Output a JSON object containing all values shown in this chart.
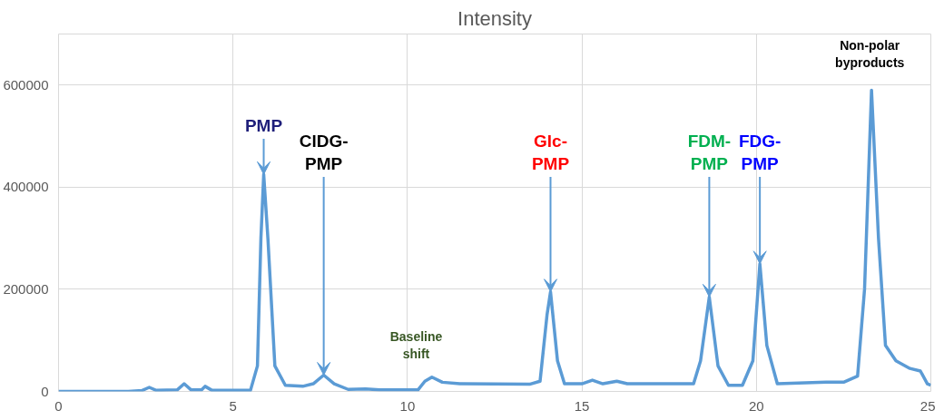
{
  "chart_data": {
    "type": "line",
    "title": "Intensity",
    "x": [
      0,
      2,
      2.4,
      2.6,
      2.8,
      3.4,
      3.6,
      3.8,
      4.1,
      4.2,
      4.4,
      5.5,
      5.7,
      5.8,
      5.88,
      6.0,
      6.2,
      6.5,
      7.0,
      7.3,
      7.6,
      7.9,
      8.3,
      8.8,
      9.2,
      10.3,
      10.5,
      10.7,
      11,
      11.5,
      13.5,
      13.8,
      14.0,
      14.1,
      14.3,
      14.5,
      15,
      15.3,
      15.6,
      16,
      16.3,
      18.2,
      18.4,
      18.65,
      18.9,
      19.2,
      19.6,
      19.9,
      20.1,
      20.3,
      20.6,
      22,
      22.5,
      22.9,
      23.1,
      23.3,
      23.5,
      23.7,
      24,
      24.4,
      24.7,
      24.9,
      25
    ],
    "series": [
      {
        "color": "#5b9bd5",
        "values": [
          0,
          0,
          2000,
          8000,
          2000,
          3000,
          15000,
          3000,
          3000,
          10000,
          2000,
          2000,
          50000,
          300000,
          425000,
          300000,
          50000,
          12000,
          10000,
          15000,
          32000,
          15000,
          4000,
          5000,
          3000,
          3000,
          20000,
          28000,
          18000,
          15000,
          14000,
          20000,
          150000,
          195000,
          60000,
          15000,
          15000,
          22000,
          15000,
          20000,
          15000,
          15000,
          60000,
          185000,
          50000,
          12000,
          12000,
          60000,
          250000,
          90000,
          15000,
          18000,
          18000,
          30000,
          200000,
          590000,
          300000,
          90000,
          60000,
          45000,
          40000,
          15000,
          12000
        ]
      }
    ],
    "xlim": [
      0,
      25
    ],
    "xticks": [
      0,
      5,
      10,
      15,
      20,
      25
    ],
    "ylim": [
      0,
      700000
    ],
    "yticks": [
      0,
      200000,
      400000,
      600000
    ],
    "grid": true,
    "line_style": "solid",
    "annotations": [
      {
        "text": "PMP",
        "x": 5.88,
        "y": 425000
      },
      {
        "text": "ClDG-\nPMP",
        "x": 7.6,
        "y": 32000
      },
      {
        "text": "Glc-\nPMP",
        "x": 14.1,
        "y": 195000
      },
      {
        "text": "FDM-\nPMP",
        "x": 18.65,
        "y": 185000
      },
      {
        "text": "FDG-\nPMP",
        "x": 20.1,
        "y": 250000
      },
      "Baseline\nshift",
      "Non-polar\nbyproducts"
    ]
  }
}
